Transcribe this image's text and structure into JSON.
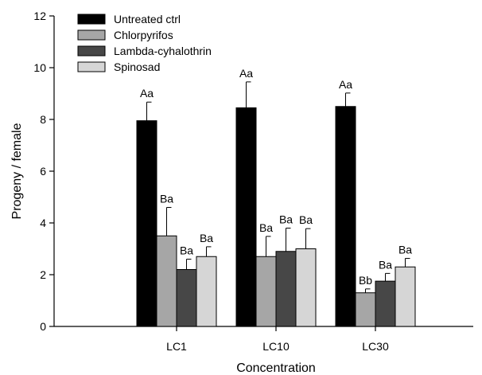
{
  "chart_data": {
    "type": "bar",
    "title": "",
    "xlabel": "Concentration",
    "ylabel": "Progeny / female",
    "ylim": [
      0,
      12
    ],
    "yticks": [
      0,
      2,
      4,
      6,
      8,
      10,
      12
    ],
    "categories": [
      "LC1",
      "LC10",
      "LC30"
    ],
    "grid": false,
    "legend_position": "top-left",
    "series": [
      {
        "name": "Untreated ctrl",
        "color": "#000000",
        "values": [
          7.95,
          8.45,
          8.5
        ],
        "errors": [
          0.72,
          1.0,
          0.52
        ],
        "labels": [
          "Aa",
          "Aa",
          "Aa"
        ]
      },
      {
        "name": "Chlorpyrifos",
        "color": "#a6a6a6",
        "values": [
          3.5,
          2.7,
          1.3
        ],
        "errors": [
          1.1,
          0.78,
          0.15
        ],
        "labels": [
          "Ba",
          "Ba",
          "Bb"
        ]
      },
      {
        "name": "Lambda-cyhalothrin",
        "color": "#474747",
        "values": [
          2.2,
          2.9,
          1.75
        ],
        "errors": [
          0.4,
          0.9,
          0.3
        ],
        "labels": [
          "Ba",
          "Ba",
          "Ba"
        ]
      },
      {
        "name": "Spinosad",
        "color": "#d6d6d6",
        "values": [
          2.7,
          3.0,
          2.3
        ],
        "errors": [
          0.38,
          0.78,
          0.33
        ],
        "labels": [
          "Ba",
          "Ba",
          "Ba"
        ]
      }
    ]
  }
}
